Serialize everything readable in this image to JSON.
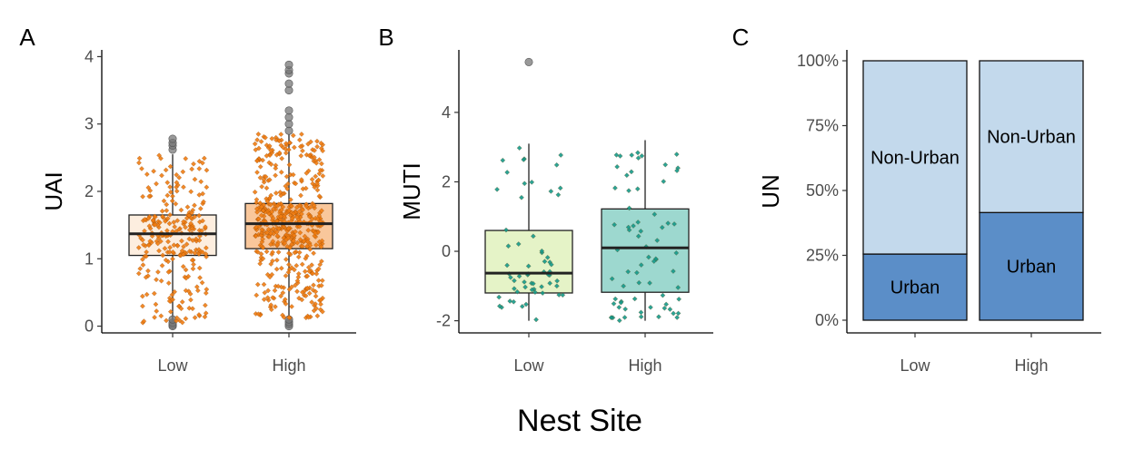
{
  "shared_xlabel": "Nest Site",
  "chart_data": [
    {
      "panel": "A",
      "type": "box",
      "categories": [
        "Low",
        "High"
      ],
      "ylabel": "UAI",
      "ylim": [
        -0.1,
        4.1
      ],
      "yticks": [
        0,
        1,
        2,
        3,
        4
      ],
      "box_stats": [
        {
          "category": "Low",
          "q1": 1.05,
          "median": 1.37,
          "q3": 1.65,
          "whisker_low": 0.05,
          "whisker_high": 2.55,
          "outliers_low": [
            0.0,
            0.02,
            0.05,
            0.1
          ],
          "outliers_high": [
            2.62,
            2.68,
            2.72,
            2.78
          ]
        },
        {
          "category": "High",
          "q1": 1.15,
          "median": 1.52,
          "q3": 1.82,
          "whisker_low": 0.12,
          "whisker_high": 2.85,
          "outliers_low": [
            0.0,
            0.03,
            0.06,
            0.1
          ],
          "outliers_high": [
            2.9,
            3.0,
            3.1,
            3.2,
            3.5,
            3.6,
            3.75,
            3.8,
            3.88
          ]
        }
      ],
      "point_counts": [
        260,
        520
      ],
      "colors": {
        "box_fill": [
          "#fdeedf",
          "#f9c79b"
        ],
        "points": "#f07c12",
        "outlier": "#777777"
      }
    },
    {
      "panel": "B",
      "type": "box",
      "categories": [
        "Low",
        "High"
      ],
      "ylabel": "MUTI",
      "ylim": [
        -2.35,
        5.8
      ],
      "yticks": [
        -2,
        0,
        2,
        4
      ],
      "box_stats": [
        {
          "category": "Low",
          "q1": -1.2,
          "median": -0.63,
          "q3": 0.6,
          "whisker_low": -2.0,
          "whisker_high": 3.1,
          "outliers_low": [],
          "outliers_high": [
            5.45
          ]
        },
        {
          "category": "High",
          "q1": -1.18,
          "median": 0.1,
          "q3": 1.22,
          "whisker_low": -2.0,
          "whisker_high": 3.2,
          "outliers_low": [],
          "outliers_high": []
        }
      ],
      "point_counts": [
        60,
        70
      ],
      "colors": {
        "box_fill": [
          "#e5f3c7",
          "#9dd8cf"
        ],
        "points": "#14998a",
        "outlier": "#777777"
      }
    },
    {
      "panel": "C",
      "type": "stacked_bar",
      "categories": [
        "Low",
        "High"
      ],
      "ylabel": "UN",
      "yticks": [
        "0%",
        "25%",
        "50%",
        "75%",
        "100%"
      ],
      "series": [
        {
          "name": "Urban",
          "values": [
            0.255,
            0.415
          ],
          "color": "#5b8ec8"
        },
        {
          "name": "Non-Urban",
          "values": [
            0.745,
            0.585
          ],
          "color": "#c3d9ec"
        }
      ]
    }
  ]
}
